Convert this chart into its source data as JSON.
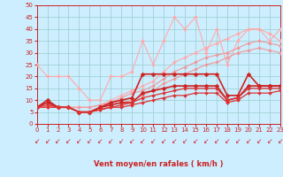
{
  "xlabel": "Vent moyen/en rafales ( km/h )",
  "xlim": [
    0,
    23
  ],
  "ylim": [
    0,
    50
  ],
  "yticks": [
    0,
    5,
    10,
    15,
    20,
    25,
    30,
    35,
    40,
    45,
    50
  ],
  "xticks": [
    0,
    1,
    2,
    3,
    4,
    5,
    6,
    7,
    8,
    9,
    10,
    11,
    12,
    13,
    14,
    15,
    16,
    17,
    18,
    19,
    20,
    21,
    22,
    23
  ],
  "background_color": "#cceeff",
  "grid_color": "#99cccc",
  "lines": [
    {
      "x": [
        0,
        1,
        2,
        3,
        4,
        5,
        6,
        7,
        8,
        9,
        10,
        11,
        12,
        13,
        14,
        15,
        16,
        17,
        18,
        19,
        20,
        21,
        22,
        23
      ],
      "y": [
        25,
        20,
        20,
        20,
        15,
        10,
        10,
        20,
        20,
        22,
        35,
        25,
        35,
        45,
        40,
        45,
        30,
        40,
        25,
        35,
        40,
        40,
        35,
        40
      ],
      "color": "#ffaaaa",
      "linewidth": 0.8,
      "markersize": 2.0
    },
    {
      "x": [
        0,
        1,
        2,
        3,
        4,
        5,
        6,
        7,
        8,
        9,
        10,
        11,
        12,
        13,
        14,
        15,
        16,
        17,
        18,
        19,
        20,
        21,
        22,
        23
      ],
      "y": [
        7,
        7,
        7,
        7,
        7,
        7,
        8,
        10,
        12,
        14,
        16,
        18,
        22,
        26,
        28,
        30,
        32,
        34,
        36,
        38,
        40,
        40,
        38,
        35
      ],
      "color": "#ffaaaa",
      "linewidth": 0.8,
      "markersize": 2.0
    },
    {
      "x": [
        0,
        1,
        2,
        3,
        4,
        5,
        6,
        7,
        8,
        9,
        10,
        11,
        12,
        13,
        14,
        15,
        16,
        17,
        18,
        19,
        20,
        21,
        22,
        23
      ],
      "y": [
        7,
        7,
        7,
        7,
        7,
        7,
        8,
        9,
        11,
        13,
        14,
        16,
        19,
        22,
        24,
        26,
        28,
        29,
        30,
        32,
        34,
        35,
        34,
        33
      ],
      "color": "#ee9999",
      "linewidth": 0.8,
      "markersize": 2.0
    },
    {
      "x": [
        0,
        1,
        2,
        3,
        4,
        5,
        6,
        7,
        8,
        9,
        10,
        11,
        12,
        13,
        14,
        15,
        16,
        17,
        18,
        19,
        20,
        21,
        22,
        23
      ],
      "y": [
        7,
        7,
        7,
        7,
        5,
        5,
        6,
        8,
        9,
        10,
        12,
        14,
        17,
        19,
        21,
        23,
        25,
        26,
        28,
        30,
        31,
        32,
        31,
        30
      ],
      "color": "#ee9999",
      "linewidth": 0.8,
      "markersize": 2.0
    },
    {
      "x": [
        0,
        1,
        2,
        3,
        4,
        5,
        6,
        7,
        8,
        9,
        10,
        11,
        12,
        13,
        14,
        15,
        16,
        17,
        18,
        19,
        20,
        21,
        22,
        23
      ],
      "y": [
        7,
        10,
        7,
        7,
        5,
        5,
        7,
        9,
        10,
        11,
        21,
        21,
        21,
        21,
        21,
        21,
        21,
        21,
        12,
        12,
        21,
        16,
        16,
        16
      ],
      "color": "#cc2222",
      "linewidth": 1.2,
      "markersize": 2.5
    },
    {
      "x": [
        0,
        1,
        2,
        3,
        4,
        5,
        6,
        7,
        8,
        9,
        10,
        11,
        12,
        13,
        14,
        15,
        16,
        17,
        18,
        19,
        20,
        21,
        22,
        23
      ],
      "y": [
        7,
        9,
        7,
        7,
        5,
        5,
        7,
        8,
        9,
        9,
        13,
        14,
        15,
        16,
        16,
        16,
        16,
        16,
        10,
        11,
        16,
        16,
        16,
        16
      ],
      "color": "#cc2222",
      "linewidth": 1.2,
      "markersize": 2.5
    },
    {
      "x": [
        0,
        1,
        2,
        3,
        4,
        5,
        6,
        7,
        8,
        9,
        10,
        11,
        12,
        13,
        14,
        15,
        16,
        17,
        18,
        19,
        20,
        21,
        22,
        23
      ],
      "y": [
        7,
        8,
        7,
        7,
        5,
        5,
        6,
        7,
        8,
        9,
        11,
        12,
        13,
        14,
        15,
        15,
        15,
        15,
        10,
        11,
        15,
        15,
        15,
        15
      ],
      "color": "#dd3333",
      "linewidth": 0.9,
      "markersize": 2.0
    },
    {
      "x": [
        0,
        1,
        2,
        3,
        4,
        5,
        6,
        7,
        8,
        9,
        10,
        11,
        12,
        13,
        14,
        15,
        16,
        17,
        18,
        19,
        20,
        21,
        22,
        23
      ],
      "y": [
        7,
        7,
        7,
        7,
        5,
        5,
        6,
        7,
        7,
        8,
        9,
        10,
        11,
        12,
        12,
        13,
        13,
        13,
        9,
        10,
        13,
        13,
        13,
        14
      ],
      "color": "#dd3333",
      "linewidth": 0.9,
      "markersize": 2.0
    }
  ],
  "arrow_color": "#cc2222",
  "arrow_fontsize": 5.5,
  "xlabel_fontsize": 6,
  "xlabel_color": "#cc2222",
  "tick_color": "#cc2222",
  "tick_fontsize": 5,
  "spine_color": "#cc2222"
}
